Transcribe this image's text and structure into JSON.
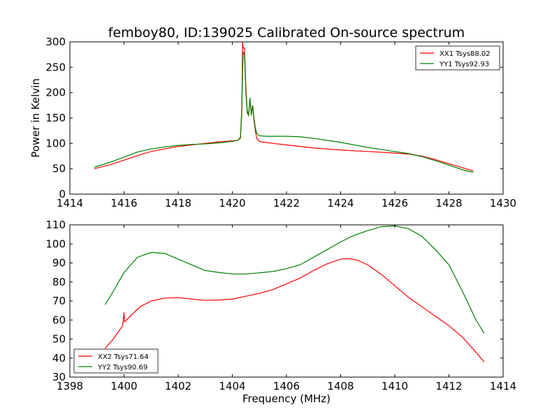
{
  "chart_data": {
    "title": "femboy80, ID:139025 Calibrated On-source spectrum",
    "colors": {
      "red": "#ff0000",
      "green": "#007f00"
    },
    "panels": [
      {
        "type": "line",
        "xlim": [
          1414,
          1430
        ],
        "ylim": [
          0,
          300
        ],
        "xticks": [
          1414,
          1416,
          1418,
          1420,
          1422,
          1424,
          1426,
          1428,
          1430
        ],
        "yticks": [
          0,
          50,
          100,
          150,
          200,
          250,
          300
        ],
        "xlabel": "",
        "ylabel": "Power in Kelvin",
        "legend_position": "top-right",
        "series": [
          {
            "name": "XX1 Tsys88.02",
            "color": "#ff0000",
            "points": [
              [
                1414.9,
                50
              ],
              [
                1415.5,
                58
              ],
              [
                1416,
                67
              ],
              [
                1416.5,
                76
              ],
              [
                1417,
                84
              ],
              [
                1417.5,
                89
              ],
              [
                1418,
                94
              ],
              [
                1418.5,
                97
              ],
              [
                1419,
                100
              ],
              [
                1419.5,
                103
              ],
              [
                1420,
                105
              ],
              [
                1420.2,
                106
              ],
              [
                1420.3,
                110
              ],
              [
                1420.35,
                160
              ],
              [
                1420.38,
                300
              ],
              [
                1420.4,
                288
              ],
              [
                1420.45,
                288
              ],
              [
                1420.5,
                210
              ],
              [
                1420.55,
                165
              ],
              [
                1420.6,
                155
              ],
              [
                1420.65,
                185
              ],
              [
                1420.7,
                160
              ],
              [
                1420.75,
                175
              ],
              [
                1420.8,
                145
              ],
              [
                1420.85,
                125
              ],
              [
                1420.9,
                110
              ],
              [
                1421,
                104
              ],
              [
                1421.2,
                102
              ],
              [
                1421.5,
                100
              ],
              [
                1422,
                97
              ],
              [
                1423,
                91
              ],
              [
                1424,
                87
              ],
              [
                1425,
                84
              ],
              [
                1426,
                81
              ],
              [
                1426.5,
                79
              ],
              [
                1427,
                75
              ],
              [
                1427.5,
                68
              ],
              [
                1428,
                60
              ],
              [
                1428.5,
                52
              ],
              [
                1428.9,
                46
              ]
            ]
          },
          {
            "name": "YY1 Tsys92.93",
            "color": "#007f00",
            "points": [
              [
                1414.9,
                53
              ],
              [
                1415.5,
                63
              ],
              [
                1416,
                73
              ],
              [
                1416.5,
                83
              ],
              [
                1417,
                89
              ],
              [
                1417.5,
                93
              ],
              [
                1418,
                96
              ],
              [
                1418.5,
                98
              ],
              [
                1419,
                99
              ],
              [
                1419.5,
                101
              ],
              [
                1420,
                104
              ],
              [
                1420.2,
                106
              ],
              [
                1420.3,
                112
              ],
              [
                1420.35,
                170
              ],
              [
                1420.38,
                240
              ],
              [
                1420.4,
                280
              ],
              [
                1420.45,
                275
              ],
              [
                1420.5,
                200
              ],
              [
                1420.55,
                160
              ],
              [
                1420.6,
                155
              ],
              [
                1420.65,
                190
              ],
              [
                1420.7,
                155
              ],
              [
                1420.75,
                175
              ],
              [
                1420.8,
                150
              ],
              [
                1420.85,
                130
              ],
              [
                1420.9,
                120
              ],
              [
                1421,
                115
              ],
              [
                1421.3,
                114
              ],
              [
                1422,
                114
              ],
              [
                1422.5,
                113
              ],
              [
                1423,
                110
              ],
              [
                1423.5,
                106
              ],
              [
                1424,
                102
              ],
              [
                1424.5,
                97
              ],
              [
                1425,
                92
              ],
              [
                1425.5,
                88
              ],
              [
                1426,
                84
              ],
              [
                1426.5,
                80
              ],
              [
                1427,
                74
              ],
              [
                1427.5,
                66
              ],
              [
                1428,
                57
              ],
              [
                1428.5,
                48
              ],
              [
                1428.9,
                43
              ]
            ]
          }
        ]
      },
      {
        "type": "line",
        "xlim": [
          1398,
          1414
        ],
        "ylim": [
          30,
          110
        ],
        "xticks": [
          1398,
          1400,
          1402,
          1404,
          1406,
          1408,
          1410,
          1412,
          1414
        ],
        "yticks": [
          30,
          40,
          50,
          60,
          70,
          80,
          90,
          100,
          110
        ],
        "xlabel": "Frequency (MHz)",
        "ylabel": "",
        "legend_position": "bottom-left",
        "series": [
          {
            "name": "XX2 Tsys71.64",
            "color": "#ff0000",
            "points": [
              [
                1399.3,
                45
              ],
              [
                1399.6,
                50
              ],
              [
                1399.95,
                57
              ],
              [
                1400,
                64
              ],
              [
                1400.02,
                59
              ],
              [
                1400.3,
                63
              ],
              [
                1400.6,
                67
              ],
              [
                1401,
                70
              ],
              [
                1401.5,
                71.5
              ],
              [
                1402,
                71.8
              ],
              [
                1402.5,
                71
              ],
              [
                1403,
                70.3
              ],
              [
                1403.5,
                70.5
              ],
              [
                1404,
                71
              ],
              [
                1404.5,
                72.5
              ],
              [
                1405,
                74
              ],
              [
                1405.5,
                76
              ],
              [
                1406,
                79
              ],
              [
                1406.5,
                82
              ],
              [
                1407,
                86
              ],
              [
                1407.5,
                89.5
              ],
              [
                1408,
                92
              ],
              [
                1408.3,
                92.3
              ],
              [
                1408.6,
                91.5
              ],
              [
                1409,
                89
              ],
              [
                1409.5,
                84
              ],
              [
                1410,
                78
              ],
              [
                1410.5,
                72
              ],
              [
                1411,
                67
              ],
              [
                1411.5,
                62
              ],
              [
                1412,
                57
              ],
              [
                1412.5,
                51
              ],
              [
                1413,
                43
              ],
              [
                1413.3,
                38
              ]
            ]
          },
          {
            "name": "YY2 Tsys90.69",
            "color": "#007f00",
            "points": [
              [
                1399.3,
                68
              ],
              [
                1399.6,
                75
              ],
              [
                1400,
                85
              ],
              [
                1400.5,
                93
              ],
              [
                1401,
                95.5
              ],
              [
                1401.5,
                95
              ],
              [
                1402,
                92
              ],
              [
                1402.5,
                89
              ],
              [
                1403,
                86
              ],
              [
                1403.5,
                85
              ],
              [
                1404,
                84.2
              ],
              [
                1404.5,
                84.2
              ],
              [
                1405,
                84.8
              ],
              [
                1405.5,
                85.5
              ],
              [
                1406,
                87
              ],
              [
                1406.5,
                89
              ],
              [
                1407,
                93
              ],
              [
                1407.5,
                97
              ],
              [
                1408,
                101
              ],
              [
                1408.5,
                104.5
              ],
              [
                1409,
                107
              ],
              [
                1409.5,
                109
              ],
              [
                1410,
                109.5
              ],
              [
                1410.5,
                108
              ],
              [
                1411,
                104
              ],
              [
                1411.5,
                97
              ],
              [
                1412,
                89
              ],
              [
                1412.5,
                75
              ],
              [
                1413,
                60
              ],
              [
                1413.3,
                53
              ]
            ]
          }
        ]
      }
    ]
  }
}
